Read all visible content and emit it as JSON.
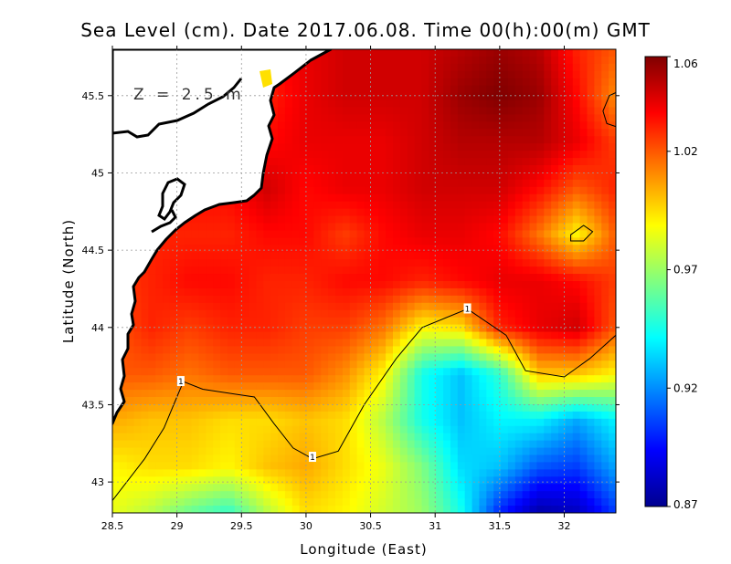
{
  "chart_data": {
    "type": "heatmap",
    "title": "Sea Level (cm). Date 2017.06.08. Time 00(h):00(m) GMT",
    "xlabel": "Longitude (East)",
    "ylabel": "Latitude (North)",
    "annotation": "Z = 2.5 m",
    "xlim": [
      28.5,
      32.4
    ],
    "ylim": [
      42.8,
      45.8
    ],
    "xticks": [
      "28.5",
      "29",
      "29.5",
      "30",
      "30.5",
      "31",
      "31.5",
      "32"
    ],
    "yticks": [
      "43",
      "43.5",
      "44",
      "44.5",
      "45",
      "45.5"
    ],
    "grid": true,
    "colorbar": {
      "min": 0.87,
      "max": 1.06,
      "ticks": [
        "1.06",
        "1.02",
        "0.97",
        "0.92",
        "0.87"
      ],
      "colors": [
        "#00008f",
        "#0000ff",
        "#0080ff",
        "#00ffff",
        "#80ff80",
        "#ffff00",
        "#ff8000",
        "#ff0000",
        "#800000"
      ]
    },
    "contour": {
      "level_label": "1",
      "points": [
        [
          28.5,
          42.88
        ],
        [
          28.75,
          43.15
        ],
        [
          28.9,
          43.35
        ],
        [
          29.0,
          43.55
        ],
        [
          29.05,
          43.65
        ],
        [
          29.2,
          43.6
        ],
        [
          29.6,
          43.55
        ],
        [
          29.75,
          43.38
        ],
        [
          29.9,
          43.22
        ],
        [
          30.05,
          43.15
        ],
        [
          30.25,
          43.2
        ],
        [
          30.45,
          43.5
        ],
        [
          30.7,
          43.8
        ],
        [
          30.9,
          44.0
        ],
        [
          31.25,
          44.12
        ],
        [
          31.55,
          43.95
        ],
        [
          31.7,
          43.72
        ],
        [
          32.0,
          43.68
        ],
        [
          32.2,
          43.8
        ],
        [
          32.4,
          43.95
        ]
      ],
      "labels": [
        [
          29.03,
          43.65
        ],
        [
          30.05,
          43.16
        ],
        [
          31.25,
          44.12
        ]
      ]
    },
    "closed_contours": [
      [
        [
          32.05,
          44.6
        ],
        [
          32.15,
          44.66
        ],
        [
          32.22,
          44.62
        ],
        [
          32.15,
          44.56
        ],
        [
          32.05,
          44.56
        ]
      ],
      [
        [
          32.3,
          45.4
        ],
        [
          32.35,
          45.5
        ],
        [
          32.4,
          45.52
        ],
        [
          32.4,
          45.3
        ],
        [
          32.33,
          45.32
        ]
      ]
    ],
    "field": {
      "lon": [
        28.5,
        28.8,
        29.1,
        29.4,
        29.7,
        30.0,
        30.3,
        30.6,
        30.9,
        31.2,
        31.5,
        31.8,
        32.1,
        32.4
      ],
      "lat": [
        45.8,
        45.5,
        45.2,
        44.9,
        44.6,
        44.3,
        44.0,
        43.7,
        43.4,
        43.1,
        42.8
      ],
      "values": [
        [
          1.04,
          1.04,
          1.04,
          1.04,
          1.035,
          1.04,
          1.045,
          1.045,
          1.045,
          1.05,
          1.055,
          1.05,
          1.03,
          1.02
        ],
        [
          1.04,
          1.04,
          1.04,
          1.04,
          1.03,
          1.04,
          1.045,
          1.045,
          1.045,
          1.055,
          1.06,
          1.055,
          1.035,
          1.01
        ],
        [
          1.035,
          1.035,
          1.035,
          1.035,
          1.035,
          1.04,
          1.04,
          1.04,
          1.045,
          1.05,
          1.05,
          1.05,
          1.04,
          1.025
        ],
        [
          1.035,
          1.035,
          1.035,
          1.035,
          1.045,
          1.035,
          1.04,
          1.04,
          1.045,
          1.045,
          1.045,
          1.035,
          1.02,
          1.03
        ],
        [
          1.03,
          1.03,
          1.03,
          1.03,
          1.035,
          1.035,
          1.025,
          1.035,
          1.04,
          1.04,
          1.035,
          1.015,
          0.99,
          1.02
        ],
        [
          1.025,
          1.03,
          1.035,
          1.035,
          1.03,
          1.03,
          1.035,
          1.035,
          1.03,
          1.035,
          1.04,
          1.04,
          1.035,
          1.025
        ],
        [
          1.02,
          1.03,
          1.025,
          1.03,
          1.03,
          1.025,
          1.025,
          1.015,
          0.99,
          0.995,
          1.03,
          1.04,
          1.045,
          1.02
        ],
        [
          1.02,
          1.02,
          1.015,
          1.02,
          1.02,
          1.02,
          1.01,
          0.99,
          0.945,
          0.93,
          0.95,
          1.0,
          1.0,
          0.99
        ],
        [
          1.005,
          1.0,
          1.0,
          0.995,
          0.995,
          1.0,
          0.995,
          0.975,
          0.945,
          0.93,
          0.94,
          0.94,
          0.925,
          0.94
        ],
        [
          0.99,
          0.995,
          0.995,
          0.99,
          1.0,
          1.005,
          0.995,
          0.985,
          0.965,
          0.935,
          0.93,
          0.91,
          0.905,
          0.925
        ],
        [
          0.985,
          0.975,
          0.96,
          0.95,
          0.975,
          0.995,
          0.99,
          0.98,
          0.97,
          0.945,
          0.9,
          0.875,
          0.88,
          0.905
        ]
      ]
    }
  }
}
